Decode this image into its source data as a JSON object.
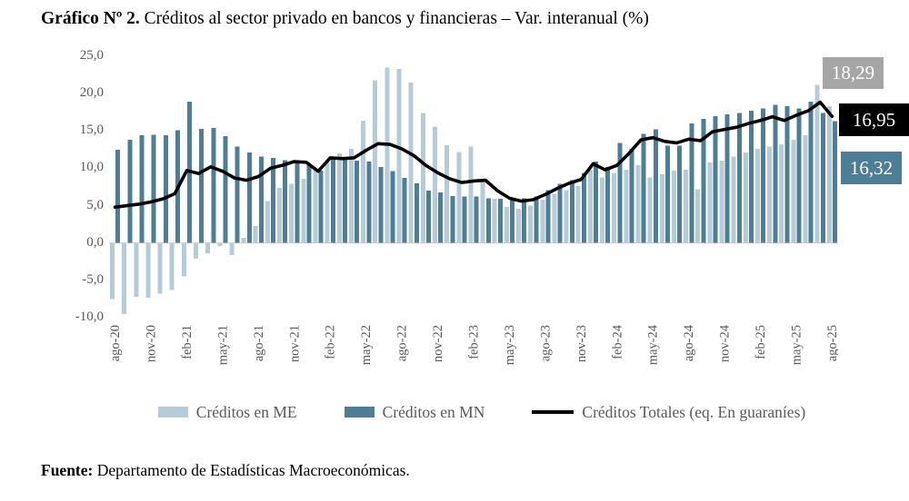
{
  "title": {
    "prefix": "Gráfico Nº 2.",
    "rest": " Créditos al sector privado en bancos y financieras – Var. interanual (%)"
  },
  "source": {
    "label": "Fuente:",
    "rest": " Departamento de Estadísticas Macroeconómicas."
  },
  "legend": [
    {
      "label": "Créditos en ME",
      "marker": "bar-swatch",
      "color": "#b5cbd8"
    },
    {
      "label": "Créditos en MN",
      "marker": "bar-swatch",
      "color": "#4e7e95"
    },
    {
      "label": "Créditos Totales (eq. En guaraníes)",
      "marker": "line-swatch",
      "color": "#000000"
    }
  ],
  "callouts": [
    {
      "series": "Créditos en ME",
      "value": "18,29",
      "bg": "#a6a6a6",
      "text_color": "#ffffff"
    },
    {
      "series": "Créditos Totales (eq. En guaraníes)",
      "value": "16,95",
      "bg": "#000000",
      "text_color": "#ffffff"
    },
    {
      "series": "Créditos en MN",
      "value": "16,32",
      "bg": "#4e7e95",
      "text_color": "#ffffff"
    }
  ],
  "colors": {
    "me_bar": "#b5cbd8",
    "mn_bar": "#4e7e95",
    "total_line": "#000000",
    "axis_text": "#595959",
    "zero_line": "#c9c9c9",
    "background": "#ffffff"
  },
  "chart_data": {
    "type": "bar",
    "title": "Créditos al sector privado en bancos y financieras – Var. interanual (%)",
    "xlabel": "",
    "ylabel": "Var. interanual (%)",
    "ylim": [
      -10,
      25
    ],
    "ytick_values": [
      25,
      20,
      15,
      10,
      5,
      0,
      -5,
      -10
    ],
    "ytick_labels": [
      "25,0",
      "20,0",
      "15,0",
      "10,0",
      "5,0",
      "0,0",
      "-5,0",
      "-10,0"
    ],
    "grid": "zero-line-only",
    "legend_position": "bottom",
    "xtick_every": 3,
    "xtick_labels_shown": [
      "ago-20",
      "nov-20",
      "feb-21",
      "may-21",
      "ago-21",
      "nov-21",
      "feb-22",
      "may-22",
      "ago-22",
      "nov-22",
      "feb-23",
      "may-23",
      "ago-23",
      "nov-23",
      "feb-24",
      "may-24",
      "ago-24",
      "nov-24",
      "feb-25",
      "may-25",
      "ago-25"
    ],
    "categories": [
      "ago-20",
      "sep-20",
      "oct-20",
      "nov-20",
      "dic-20",
      "ene-21",
      "feb-21",
      "mar-21",
      "abr-21",
      "may-21",
      "jun-21",
      "jul-21",
      "ago-21",
      "sep-21",
      "oct-21",
      "nov-21",
      "dic-21",
      "ene-22",
      "feb-22",
      "mar-22",
      "abr-22",
      "may-22",
      "jun-22",
      "jul-22",
      "ago-22",
      "sep-22",
      "oct-22",
      "nov-22",
      "dic-22",
      "ene-23",
      "feb-23",
      "mar-23",
      "abr-23",
      "may-23",
      "jun-23",
      "jul-23",
      "ago-23",
      "sep-23",
      "oct-23",
      "nov-23",
      "dic-23",
      "ene-24",
      "feb-24",
      "mar-24",
      "abr-24",
      "may-24",
      "jun-24",
      "jul-24",
      "ago-24",
      "sep-24",
      "oct-24",
      "nov-24",
      "dic-24",
      "ene-25",
      "feb-25",
      "mar-25",
      "abr-25",
      "may-25",
      "jun-25",
      "jul-25",
      "ago-25"
    ],
    "series": [
      {
        "name": "Créditos en ME",
        "type": "bar",
        "color": "#b5cbd8",
        "values": [
          -7.5,
          -9.5,
          -7.2,
          -7.3,
          -6.8,
          -6.3,
          -4.5,
          -2.1,
          -1.4,
          -0.4,
          -1.6,
          0.7,
          2.3,
          5.6,
          7.4,
          7.9,
          8.6,
          9.8,
          11.0,
          12.0,
          12.6,
          16.4,
          21.8,
          23.5,
          23.3,
          21.5,
          17.4,
          15.6,
          13.1,
          12.2,
          12.9,
          8.2,
          5.9,
          4.8,
          4.6,
          5.0,
          5.8,
          6.6,
          7.1,
          7.6,
          9.8,
          8.8,
          9.4,
          9.8,
          10.4,
          8.8,
          9.2,
          9.7,
          9.8,
          7.2,
          10.8,
          11.0,
          11.6,
          12.1,
          12.6,
          12.9,
          13.2,
          13.8,
          14.4,
          21.2,
          18.29
        ]
      },
      {
        "name": "Créditos en MN",
        "type": "bar",
        "color": "#4e7e95",
        "values": [
          12.5,
          13.8,
          14.4,
          14.5,
          14.4,
          15.1,
          18.9,
          15.3,
          15.4,
          14.3,
          12.9,
          12.1,
          11.6,
          11.4,
          11.1,
          11.0,
          10.5,
          9.7,
          11.6,
          11.2,
          11.0,
          10.9,
          10.2,
          9.6,
          8.7,
          8.0,
          7.0,
          6.8,
          6.3,
          6.2,
          6.2,
          6.0,
          5.9,
          5.9,
          6.0,
          6.2,
          7.1,
          7.9,
          8.4,
          9.4,
          10.9,
          10.2,
          13.4,
          12.6,
          14.6,
          15.2,
          13.0,
          13.0,
          16.0,
          16.6,
          17.0,
          17.2,
          17.4,
          17.7,
          18.0,
          18.5,
          18.3,
          18.0,
          18.9,
          17.4,
          16.32
        ]
      },
      {
        "name": "Créditos Totales (eq. En guaraníes)",
        "type": "line",
        "color": "#000000",
        "values": [
          4.8,
          5.0,
          5.2,
          5.5,
          5.9,
          6.6,
          9.7,
          9.3,
          10.2,
          9.6,
          8.7,
          8.4,
          8.9,
          10.0,
          10.4,
          10.9,
          10.8,
          9.6,
          11.4,
          11.3,
          11.4,
          12.4,
          13.3,
          13.2,
          12.6,
          11.7,
          10.4,
          9.4,
          8.6,
          8.1,
          8.3,
          8.4,
          7.0,
          6.0,
          5.6,
          5.8,
          6.5,
          7.3,
          8.0,
          8.5,
          10.6,
          9.8,
          10.4,
          12.0,
          13.8,
          14.1,
          13.6,
          13.4,
          13.9,
          13.7,
          14.9,
          15.2,
          15.5,
          16.0,
          16.4,
          16.9,
          16.4,
          17.1,
          17.7,
          18.85,
          16.95
        ]
      }
    ]
  }
}
